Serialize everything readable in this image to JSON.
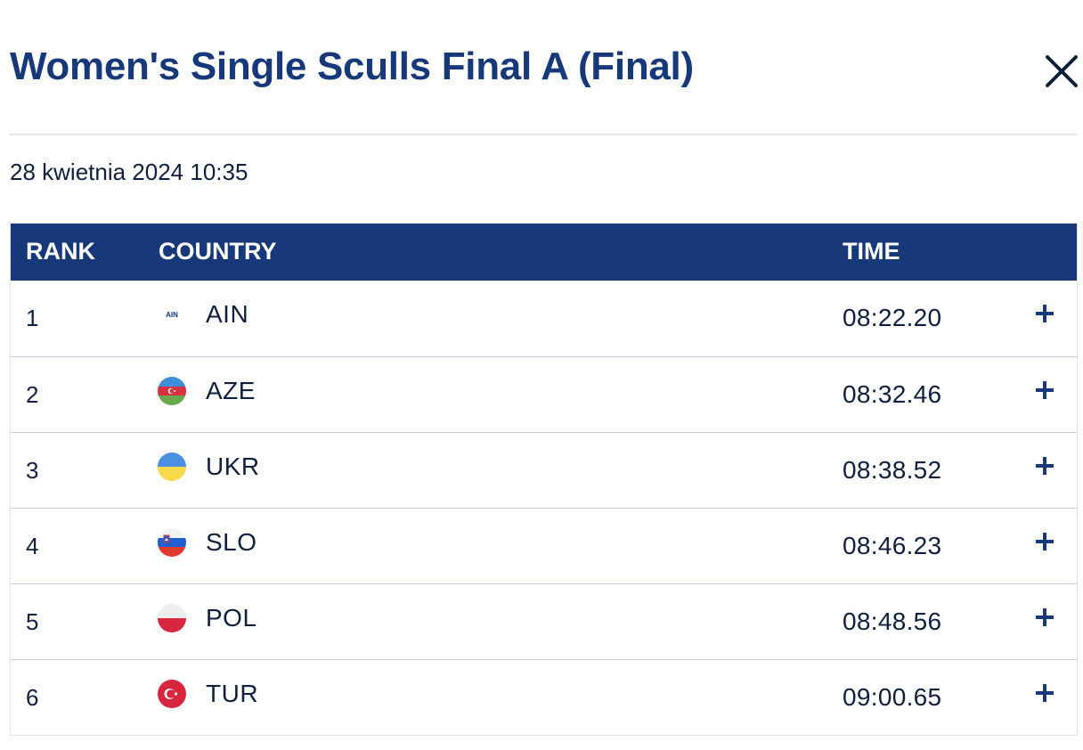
{
  "header": {
    "title": "Women's Single Sculls Final A (Final)",
    "close_icon": "close-icon"
  },
  "event": {
    "datetime": "28 kwietnia 2024 10:35"
  },
  "table": {
    "columns": {
      "rank": "RANK",
      "country": "COUNTRY",
      "time": "TIME"
    },
    "rows": [
      {
        "rank": "1",
        "code": "AIN",
        "flag": "ain-flag-icon",
        "flag_text": "AIN",
        "time": "08:22.20"
      },
      {
        "rank": "2",
        "code": "AZE",
        "flag": "azerbaijan-flag-icon",
        "time": "08:32.46"
      },
      {
        "rank": "3",
        "code": "UKR",
        "flag": "ukraine-flag-icon",
        "time": "08:38.52"
      },
      {
        "rank": "4",
        "code": "SLO",
        "flag": "slovenia-flag-icon",
        "time": "08:46.23"
      },
      {
        "rank": "5",
        "code": "POL",
        "flag": "poland-flag-icon",
        "time": "08:48.56"
      },
      {
        "rank": "6",
        "code": "TUR",
        "flag": "turkey-flag-icon",
        "time": "09:00.65"
      }
    ],
    "expand_icon": "plus-icon"
  },
  "colors": {
    "brand": "#17397a",
    "text": "#0f1f3d",
    "row_divider": "#c6cad4"
  }
}
